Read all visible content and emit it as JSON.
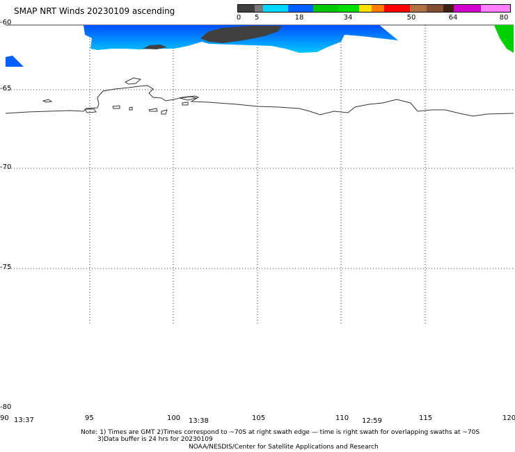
{
  "title": "SMAP NRT Winds 20230109 ascending",
  "colorbar": {
    "ticks": [
      "0",
      "5",
      "18",
      "34",
      "50",
      "64",
      "80"
    ],
    "segments": [
      {
        "color": "#404040",
        "frac": 0.0615
      },
      {
        "color": "#7a7a7a",
        "frac": 0.0308
      },
      {
        "color": "#00d8ff",
        "frac": 0.0923
      },
      {
        "color": "#0060ff",
        "frac": 0.0923
      },
      {
        "color": "#00c800",
        "frac": 0.0923
      },
      {
        "color": "#00e000",
        "frac": 0.0769
      },
      {
        "color": "#ffe000",
        "frac": 0.0462
      },
      {
        "color": "#ff8000",
        "frac": 0.0462
      },
      {
        "color": "#ff0000",
        "frac": 0.0923
      },
      {
        "color": "#b07040",
        "frac": 0.0615
      },
      {
        "color": "#805030",
        "frac": 0.0615
      },
      {
        "color": "#402010",
        "frac": 0.0385
      },
      {
        "color": "#d000d0",
        "frac": 0.1
      },
      {
        "color": "#ff80ff",
        "frac": 0.1077
      }
    ]
  },
  "lat_labels": [
    "-60",
    "-65",
    "-70",
    "-75",
    "-80"
  ],
  "lon_labels": [
    "90",
    "95",
    "100",
    "105",
    "110",
    "115",
    "120"
  ],
  "times": [
    "13:37",
    "13:38",
    "12:59"
  ],
  "notes": {
    "line1": "Note: 1) Times are GMT 2)Times correspond to ~70S at right swath edge — time is right swath for overlapping swaths at ~70S",
    "line2": "3)Data buffer is 24 hrs for 20230109",
    "line3": "NOAA/NESDIS/Center for Satellite Applications and Research"
  }
}
